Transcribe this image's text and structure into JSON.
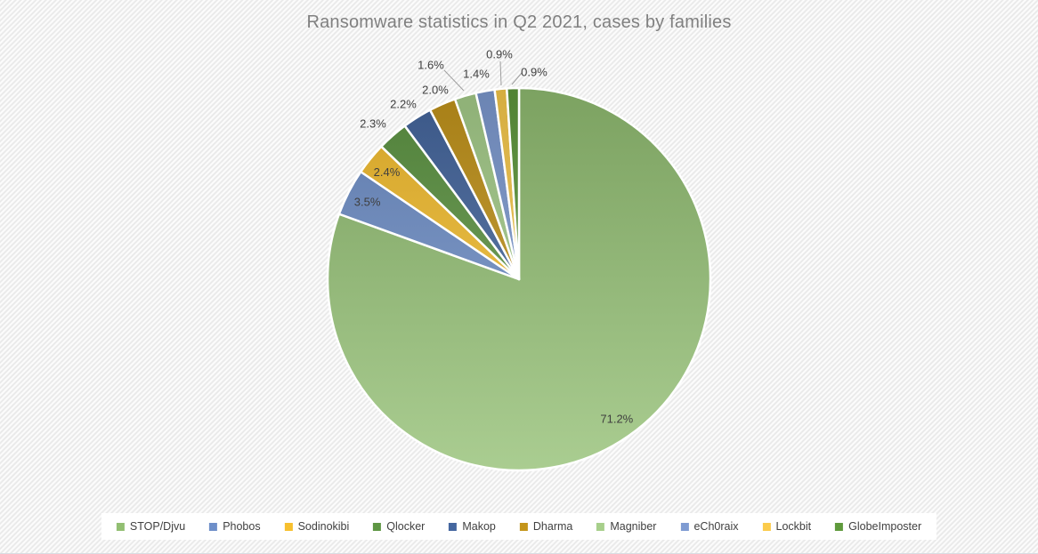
{
  "chart_data": {
    "type": "pie",
    "title": "Ransomware statistics in Q2 2021, cases by families",
    "unit": "%",
    "legend_position": "bottom",
    "start_angle_deg": 0,
    "direction": "clockwise",
    "slices": [
      {
        "label": "STOP/Djvu",
        "value": 71.2,
        "display": "71.2%",
        "color": "#92BF72",
        "label_placement": "inside"
      },
      {
        "label": "Phobos",
        "value": 3.5,
        "display": "3.5%",
        "color": "#6E8FC9",
        "label_placement": "inside"
      },
      {
        "label": "Sodinokibi",
        "value": 2.4,
        "display": "2.4%",
        "color": "#F7C02E",
        "label_placement": "inside"
      },
      {
        "label": "Qlocker",
        "value": 2.3,
        "display": "2.3%",
        "color": "#5E9643",
        "label_placement": "outside"
      },
      {
        "label": "Makop",
        "value": 2.2,
        "display": "2.2%",
        "color": "#44669F",
        "label_placement": "outside"
      },
      {
        "label": "Dharma",
        "value": 2.0,
        "display": "2.0%",
        "color": "#C4951A",
        "label_placement": "outside"
      },
      {
        "label": "Magniber",
        "value": 1.6,
        "display": "1.6%",
        "color": "#A7CF8B",
        "label_placement": "outside"
      },
      {
        "label": "eCh0raix",
        "value": 1.4,
        "display": "1.4%",
        "color": "#7E9BD2",
        "label_placement": "outside"
      },
      {
        "label": "Lockbit",
        "value": 0.9,
        "display": "0.9%",
        "color": "#FBCB4B",
        "label_placement": "outside"
      },
      {
        "label": "GlobeImposter",
        "value": 0.9,
        "display": "0.9%",
        "color": "#5F9A3C",
        "label_placement": "outside"
      }
    ]
  },
  "colors": {
    "title_text": "#808080",
    "data_label_text": "#3F3F3F",
    "legend_text": "#404040",
    "legend_background": "#FFFFFF",
    "slice_border": "#FFFFFF",
    "leader_line": "#9E9E9E"
  }
}
